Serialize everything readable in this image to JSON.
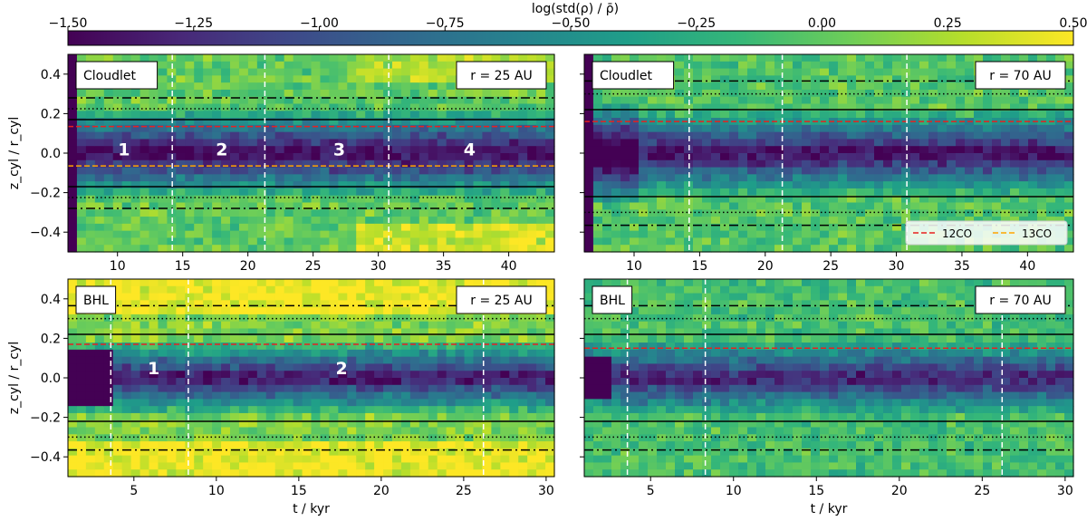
{
  "colorbar": {
    "label": "log(std(ρ) / ρ̄)",
    "ticks": [
      "−1.50",
      "−1.25",
      "−1.00",
      "−0.75",
      "−0.50",
      "−0.25",
      "0.00",
      "0.25",
      "0.50"
    ],
    "range": [
      -1.5,
      0.5
    ],
    "colors": [
      "#440154",
      "#482878",
      "#3e4989",
      "#31688e",
      "#26828e",
      "#1f9e89",
      "#35b779",
      "#6ece58",
      "#b5de2b",
      "#fde725"
    ]
  },
  "legend": {
    "red_label": "12CO",
    "orange_label": "13CO",
    "red_color": "#e8211f",
    "orange_color": "#ffa500"
  },
  "chart_data": [
    {
      "type": "heatmap",
      "id": "cloudlet_25",
      "model_label": "Cloudlet",
      "radius_label": "r = 25 AU",
      "xlim": [
        6.2,
        43.5
      ],
      "ylim": [
        -0.5,
        0.5
      ],
      "xticks": [
        10,
        15,
        20,
        25,
        30,
        35,
        40
      ],
      "xtick_labels": [
        "10",
        "15",
        "20",
        "25",
        "30",
        "35",
        "40"
      ],
      "yticks": [
        0.4,
        0.2,
        0.0,
        -0.2,
        -0.4
      ],
      "ytick_labels": [
        "0.4",
        "0.2",
        "0.0",
        "−0.2",
        "−0.4"
      ],
      "xlabel": "",
      "ylabel": "z_cyl / r_cyl",
      "solid_lines": [
        0.17,
        -0.17
      ],
      "dotted_lines": [
        0.225,
        -0.225
      ],
      "dashdot_lines": [
        0.28,
        -0.28
      ],
      "co12_line": 0.135,
      "co13_line": -0.065,
      "phase_boundaries": [
        14.2,
        21.3,
        30.8
      ],
      "phase_labels": [
        {
          "text": "1",
          "t": 10.5,
          "z": 0.02
        },
        {
          "text": "2",
          "t": 18.0,
          "z": 0.02
        },
        {
          "text": "3",
          "t": 27.0,
          "z": 0.02
        },
        {
          "text": "4",
          "t": 37.0,
          "z": 0.02
        }
      ],
      "show_legend": false
    },
    {
      "type": "heatmap",
      "id": "cloudlet_70",
      "model_label": "Cloudlet",
      "radius_label": "r = 70 AU",
      "xlim": [
        6.2,
        43.5
      ],
      "ylim": [
        -0.5,
        0.5
      ],
      "xticks": [
        10,
        15,
        20,
        25,
        30,
        35,
        40
      ],
      "xtick_labels": [
        "10",
        "15",
        "20",
        "25",
        "30",
        "35",
        "40"
      ],
      "yticks": [
        0.4,
        0.2,
        0.0,
        -0.2,
        -0.4
      ],
      "ytick_labels": [],
      "xlabel": "",
      "ylabel": "",
      "solid_lines": [
        0.22,
        -0.22
      ],
      "dotted_lines": [
        0.3,
        -0.3
      ],
      "dashdot_lines": [
        0.365,
        -0.365
      ],
      "co12_line": 0.16,
      "co13_line": null,
      "phase_boundaries": [
        14.2,
        21.3,
        30.8
      ],
      "phase_labels": [],
      "show_legend": true
    },
    {
      "type": "heatmap",
      "id": "bhl_25",
      "model_label": "BHL",
      "radius_label": "r = 25 AU",
      "xlim": [
        1.0,
        30.5
      ],
      "ylim": [
        -0.5,
        0.5
      ],
      "xticks": [
        5,
        10,
        15,
        20,
        25,
        30
      ],
      "xtick_labels": [
        "5",
        "10",
        "15",
        "20",
        "25",
        "30"
      ],
      "yticks": [
        0.4,
        0.2,
        0.0,
        -0.2,
        -0.4
      ],
      "ytick_labels": [
        "0.4",
        "0.2",
        "0.0",
        "−0.2",
        "−0.4"
      ],
      "xlabel": "t / kyr",
      "ylabel": "z_cyl / r_cyl",
      "solid_lines": [
        0.22,
        -0.22
      ],
      "dotted_lines": [
        0.3,
        -0.3
      ],
      "dashdot_lines": [
        0.365,
        -0.365
      ],
      "co12_line": 0.17,
      "co13_line": null,
      "phase_boundaries": [
        3.6,
        8.3,
        26.2
      ],
      "phase_labels": [
        {
          "text": "1",
          "t": 6.2,
          "z": 0.05
        },
        {
          "text": "2",
          "t": 17.6,
          "z": 0.05
        }
      ],
      "show_legend": false
    },
    {
      "type": "heatmap",
      "id": "bhl_70",
      "model_label": "BHL",
      "radius_label": "r = 70 AU",
      "xlim": [
        1.0,
        30.5
      ],
      "ylim": [
        -0.5,
        0.5
      ],
      "xticks": [
        5,
        10,
        15,
        20,
        25,
        30
      ],
      "xtick_labels": [
        "5",
        "10",
        "15",
        "20",
        "25",
        "30"
      ],
      "yticks": [
        0.4,
        0.2,
        0.0,
        -0.2,
        -0.4
      ],
      "ytick_labels": [],
      "xlabel": "t / kyr",
      "ylabel": "",
      "solid_lines": [
        0.22,
        -0.22
      ],
      "dotted_lines": [
        0.3,
        -0.3
      ],
      "dashdot_lines": [
        0.365,
        -0.365
      ],
      "co12_line": 0.15,
      "co13_line": null,
      "phase_boundaries": [
        3.6,
        8.3,
        26.2
      ],
      "phase_labels": [],
      "show_legend": false
    }
  ]
}
